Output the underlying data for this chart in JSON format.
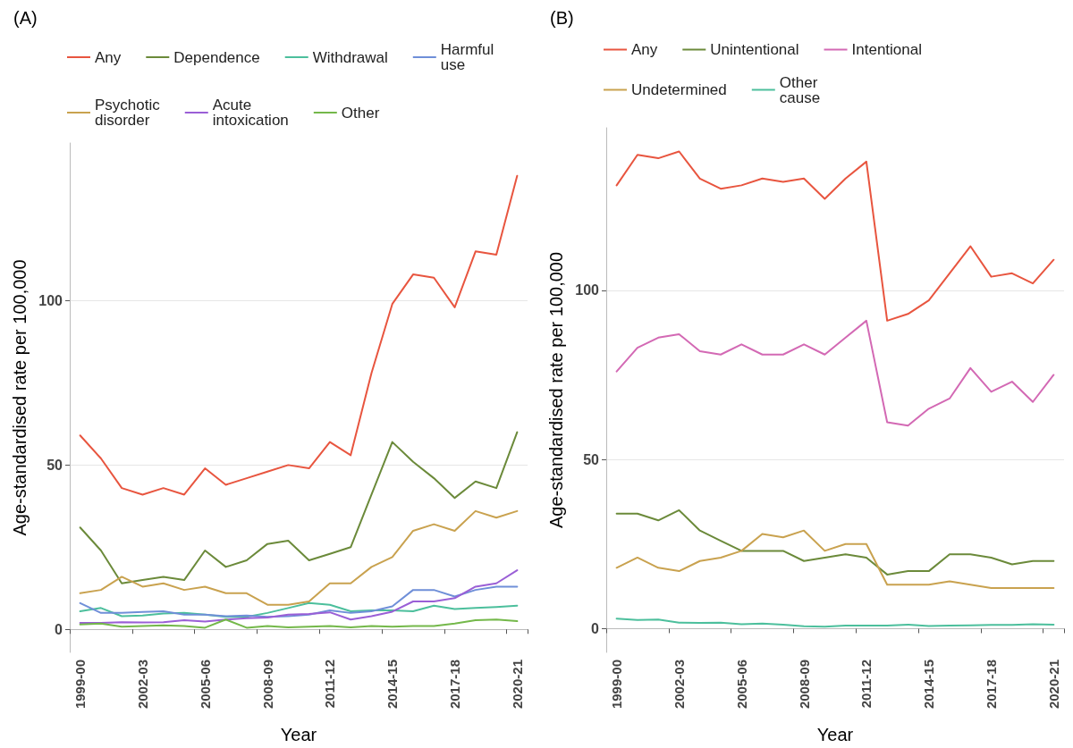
{
  "chart_data": [
    {
      "type": "line",
      "title": "(A)",
      "xlabel": "Year",
      "ylabel": "Age-standardised rate per 100,000",
      "categories": [
        "1999-00",
        null,
        null,
        "2002-03",
        null,
        null,
        "2005-06",
        null,
        null,
        "2008-09",
        null,
        null,
        "2011-12",
        null,
        null,
        "2014-15",
        null,
        null,
        "2017-18",
        null,
        null,
        "2020-21"
      ],
      "ylim": [
        -7,
        148
      ],
      "yticks": [
        0,
        50,
        100
      ],
      "grid": "y",
      "legend": "top",
      "marker": "none",
      "series": [
        {
          "name": "Any",
          "color": "#e8553f",
          "values": [
            59,
            52,
            43,
            41,
            43,
            41,
            49,
            44,
            46,
            48,
            50,
            49,
            57,
            53,
            78,
            99,
            108,
            107,
            98,
            115,
            114,
            138
          ]
        },
        {
          "name": "Dependence",
          "color": "#6b8a3a",
          "values": [
            31,
            24,
            14,
            15,
            16,
            15,
            24,
            19,
            21,
            26,
            27,
            21,
            23,
            25,
            41,
            57,
            51,
            46,
            40,
            45,
            43,
            60
          ]
        },
        {
          "name": "Withdrawal",
          "color": "#4cbf9c",
          "values": [
            5.5,
            6.5,
            4,
            4.2,
            4.8,
            5,
            4.5,
            3.8,
            3.8,
            5,
            6.5,
            8,
            7.5,
            5.5,
            5.8,
            5.8,
            5.5,
            7.2,
            6.2,
            6.5,
            6.8,
            7.2
          ]
        },
        {
          "name": "Harmful use",
          "color": "#6f8fd8",
          "values": [
            8,
            5,
            5,
            5.3,
            5.5,
            4.5,
            4.5,
            4,
            4.2,
            3.8,
            4,
            4.5,
            5.8,
            5,
            5.5,
            7,
            12,
            12,
            10,
            12,
            13,
            13
          ]
        },
        {
          "name": "Psychotic disorder",
          "color": "#c9a24f",
          "values": [
            11,
            12,
            16,
            13,
            14,
            12,
            13,
            11,
            11,
            7.5,
            7.5,
            8.5,
            14,
            14,
            19,
            22,
            30,
            32,
            30,
            36,
            34,
            36
          ]
        },
        {
          "name": "Acute intoxication",
          "color": "#9a5fd6",
          "values": [
            2,
            2,
            2.2,
            2.1,
            2.2,
            2.8,
            2.4,
            3,
            3.4,
            3.6,
            4.5,
            4.7,
            5.2,
            3,
            4,
            5.4,
            8.5,
            8.5,
            9.5,
            13,
            14,
            18
          ]
        },
        {
          "name": "Other",
          "color": "#74b84a",
          "values": [
            1.5,
            1.8,
            0.8,
            1,
            1.2,
            1,
            0.5,
            3,
            0.5,
            1,
            0.6,
            0.8,
            1,
            0.6,
            1,
            0.8,
            1,
            1,
            1.8,
            2.8,
            3,
            2.5
          ]
        }
      ]
    },
    {
      "type": "line",
      "title": "(B)",
      "xlabel": "Year",
      "ylabel": "Age-standardised rate per 100,000",
      "categories": [
        "1999-00",
        null,
        null,
        "2002-03",
        null,
        null,
        "2005-06",
        null,
        null,
        "2008-09",
        null,
        null,
        "2011-12",
        null,
        null,
        "2014-15",
        null,
        null,
        "2017-18",
        null,
        null,
        "2020-21"
      ],
      "ylim": [
        -7,
        148
      ],
      "yticks": [
        0,
        50,
        100
      ],
      "grid": "y",
      "legend": "top",
      "marker": "none",
      "series": [
        {
          "name": "Any",
          "color": "#e8553f",
          "values": [
            131,
            140,
            139,
            141,
            133,
            130,
            131,
            133,
            132,
            133,
            127,
            133,
            138,
            91,
            93,
            97,
            105,
            113,
            104,
            105,
            102,
            109
          ]
        },
        {
          "name": "Unintentional",
          "color": "#6b8a3a",
          "values": [
            34,
            34,
            32,
            35,
            29,
            26,
            23,
            23,
            23,
            20,
            21,
            22,
            21,
            16,
            17,
            17,
            22,
            22,
            21,
            19,
            20,
            20
          ]
        },
        {
          "name": "Intentional",
          "color": "#d369b4",
          "values": [
            76,
            83,
            86,
            87,
            82,
            81,
            84,
            81,
            81,
            84,
            81,
            86,
            91,
            61,
            60,
            65,
            68,
            77,
            70,
            73,
            67,
            75
          ]
        },
        {
          "name": "Undetermined",
          "color": "#c9a24f",
          "values": [
            18,
            21,
            18,
            17,
            20,
            21,
            23,
            28,
            27,
            29,
            23,
            25,
            25,
            13,
            13,
            13,
            14,
            13,
            12,
            12,
            12,
            12
          ]
        },
        {
          "name": "Other cause",
          "color": "#4cbf9c",
          "values": [
            3,
            2.6,
            2.7,
            1.8,
            1.7,
            1.8,
            1.3,
            1.5,
            1.2,
            0.7,
            0.6,
            0.9,
            0.9,
            0.9,
            1.2,
            0.8,
            0.9,
            1,
            1.1,
            1.1,
            1.3,
            1.2
          ]
        }
      ]
    }
  ]
}
